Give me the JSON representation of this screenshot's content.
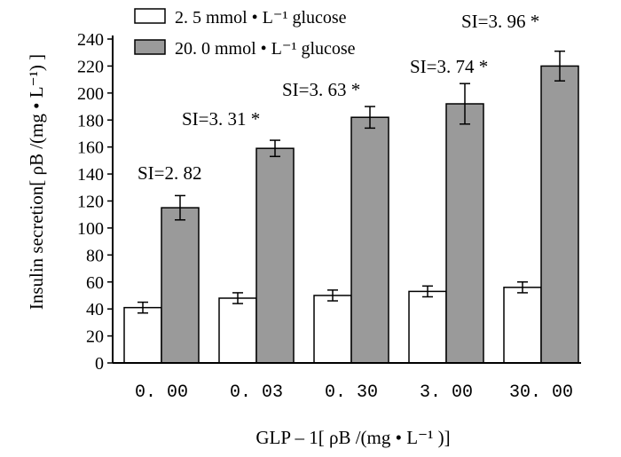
{
  "chart_data": {
    "type": "bar",
    "title": "",
    "xlabel": "GLP – 1[ ρB /(mg • L⁻¹ )]",
    "ylabel": "Insulin secretion[ ρB /(mg • L⁻¹) ]",
    "ylim": [
      0,
      240
    ],
    "yticks": [
      "0",
      "20",
      "40",
      "60",
      "80",
      "100",
      "120",
      "140",
      "160",
      "180",
      "200",
      "220",
      "240"
    ],
    "categories": [
      "0. 00",
      "0. 03",
      "0. 30",
      "3. 00",
      "30. 00"
    ],
    "series": [
      {
        "name": "2. 5  mmol • L⁻¹ glucose",
        "color": "#ffffff",
        "values": [
          41,
          48,
          50,
          53,
          56
        ],
        "errors": [
          4,
          4,
          4,
          4,
          4
        ]
      },
      {
        "name": "20. 0  mmol • L⁻¹ glucose",
        "color": "#9a9a9a",
        "values": [
          115,
          159,
          182,
          192,
          220
        ],
        "errors": [
          9,
          6,
          8,
          15,
          11
        ]
      }
    ],
    "annotations": [
      "SI=2. 82",
      "SI=3. 31 *",
      "SI=3. 63 *",
      "SI=3. 74 *",
      "SI=3. 96 *"
    ],
    "legend_position": "top-left"
  }
}
